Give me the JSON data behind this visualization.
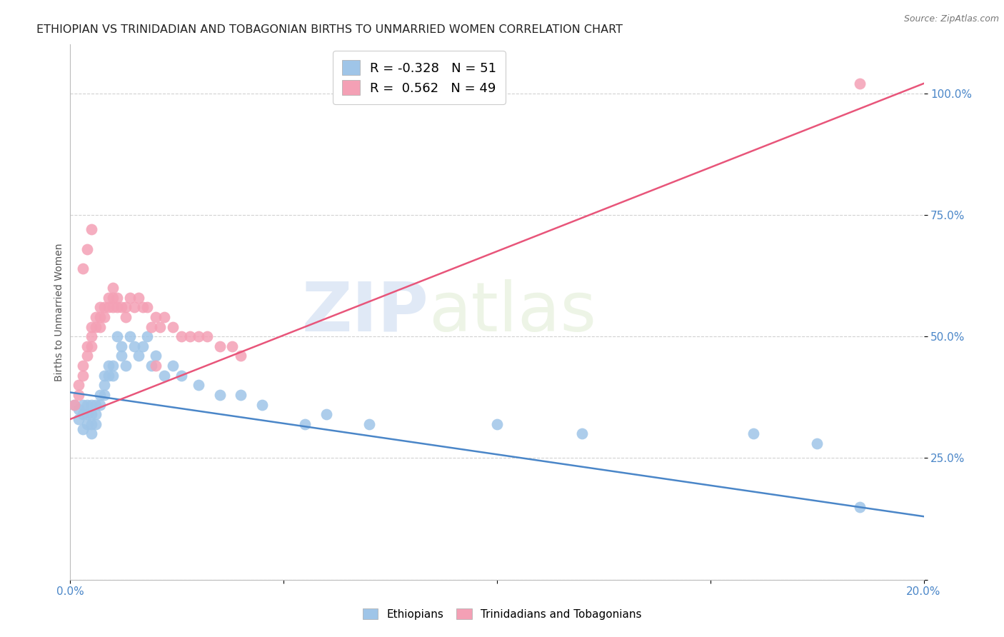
{
  "title": "ETHIOPIAN VS TRINIDADIAN AND TOBAGONIAN BIRTHS TO UNMARRIED WOMEN CORRELATION CHART",
  "source": "Source: ZipAtlas.com",
  "ylabel": "Births to Unmarried Women",
  "xmin": 0.0,
  "xmax": 0.2,
  "ymin": 0.0,
  "ymax": 1.1,
  "yticks": [
    0.0,
    0.25,
    0.5,
    0.75,
    1.0
  ],
  "ytick_labels": [
    "",
    "25.0%",
    "50.0%",
    "75.0%",
    "100.0%"
  ],
  "xtick_positions": [
    0.0,
    0.05,
    0.1,
    0.15,
    0.2
  ],
  "xtick_labels": [
    "0.0%",
    "",
    "",
    "",
    "20.0%"
  ],
  "blue_color": "#9fc5e8",
  "pink_color": "#f4a0b5",
  "blue_line_color": "#4a86c8",
  "pink_line_color": "#e8557a",
  "legend_blue_label": "R = -0.328   N = 51",
  "legend_pink_label": "R =  0.562   N = 49",
  "watermark_zip": "ZIP",
  "watermark_atlas": "atlas",
  "legend_label_ethiopians": "Ethiopians",
  "legend_label_trinidadians": "Trinidadians and Tobagonians",
  "blue_trend_x": [
    0.0,
    0.2
  ],
  "blue_trend_y": [
    0.385,
    0.13
  ],
  "pink_trend_x": [
    0.0,
    0.2
  ],
  "pink_trend_y": [
    0.33,
    1.02
  ],
  "blue_scatter_x": [
    0.001,
    0.002,
    0.002,
    0.003,
    0.003,
    0.003,
    0.004,
    0.004,
    0.004,
    0.005,
    0.005,
    0.005,
    0.005,
    0.006,
    0.006,
    0.006,
    0.007,
    0.007,
    0.008,
    0.008,
    0.008,
    0.009,
    0.009,
    0.01,
    0.01,
    0.011,
    0.012,
    0.012,
    0.013,
    0.014,
    0.015,
    0.016,
    0.017,
    0.018,
    0.019,
    0.02,
    0.022,
    0.024,
    0.026,
    0.03,
    0.035,
    0.04,
    0.045,
    0.055,
    0.06,
    0.07,
    0.1,
    0.12,
    0.16,
    0.175,
    0.185
  ],
  "blue_scatter_y": [
    0.36,
    0.35,
    0.33,
    0.36,
    0.34,
    0.31,
    0.36,
    0.34,
    0.32,
    0.36,
    0.34,
    0.32,
    0.3,
    0.36,
    0.34,
    0.32,
    0.38,
    0.36,
    0.42,
    0.4,
    0.38,
    0.44,
    0.42,
    0.44,
    0.42,
    0.5,
    0.48,
    0.46,
    0.44,
    0.5,
    0.48,
    0.46,
    0.48,
    0.5,
    0.44,
    0.46,
    0.42,
    0.44,
    0.42,
    0.4,
    0.38,
    0.38,
    0.36,
    0.32,
    0.34,
    0.32,
    0.32,
    0.3,
    0.3,
    0.28,
    0.15
  ],
  "pink_scatter_x": [
    0.001,
    0.002,
    0.002,
    0.003,
    0.003,
    0.004,
    0.004,
    0.005,
    0.005,
    0.005,
    0.006,
    0.006,
    0.007,
    0.007,
    0.007,
    0.008,
    0.008,
    0.009,
    0.009,
    0.01,
    0.01,
    0.01,
    0.011,
    0.011,
    0.012,
    0.013,
    0.013,
    0.014,
    0.015,
    0.016,
    0.017,
    0.018,
    0.019,
    0.02,
    0.021,
    0.022,
    0.024,
    0.026,
    0.028,
    0.03,
    0.032,
    0.035,
    0.038,
    0.04,
    0.003,
    0.004,
    0.005,
    0.185,
    0.02
  ],
  "pink_scatter_y": [
    0.36,
    0.4,
    0.38,
    0.44,
    0.42,
    0.48,
    0.46,
    0.52,
    0.5,
    0.48,
    0.54,
    0.52,
    0.56,
    0.54,
    0.52,
    0.56,
    0.54,
    0.58,
    0.56,
    0.6,
    0.58,
    0.56,
    0.58,
    0.56,
    0.56,
    0.56,
    0.54,
    0.58,
    0.56,
    0.58,
    0.56,
    0.56,
    0.52,
    0.54,
    0.52,
    0.54,
    0.52,
    0.5,
    0.5,
    0.5,
    0.5,
    0.48,
    0.48,
    0.46,
    0.64,
    0.68,
    0.72,
    1.02,
    0.44
  ],
  "background_color": "#ffffff",
  "title_color": "#222222",
  "axis_label_color": "#4a86c8",
  "grid_color": "#cccccc",
  "title_fontsize": 11.5,
  "ylabel_fontsize": 10,
  "tick_fontsize": 11,
  "legend_fontsize": 13,
  "source_fontsize": 9
}
